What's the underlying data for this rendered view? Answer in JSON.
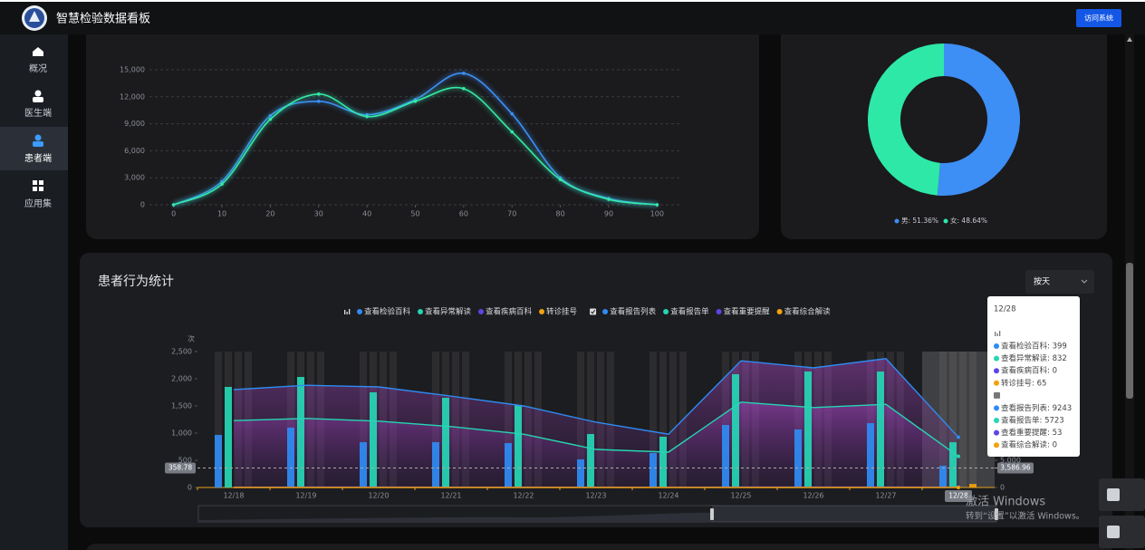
{
  "header": {
    "title": "智慧检验数据看板",
    "button": "访问系统"
  },
  "sidebar": {
    "items": [
      "概况",
      "医生端",
      "患者端",
      "应用集"
    ],
    "active": 2
  },
  "panel_title": "患者行为统计",
  "dropdown": "按天",
  "chart_data": [
    {
      "type": "line",
      "x": [
        0,
        10,
        20,
        30,
        40,
        50,
        60,
        70,
        80,
        90,
        100
      ],
      "xlim": [
        -5,
        105
      ],
      "xticks": [
        0,
        10,
        20,
        30,
        40,
        50,
        60,
        70,
        80,
        90,
        100
      ],
      "ylim": [
        0,
        15000
      ],
      "yticks": [
        0,
        {
          "value": 3000,
          "label": "3,000"
        },
        {
          "value": 6000,
          "label": "6,000"
        },
        {
          "value": 9000,
          "label": "9,000"
        },
        {
          "value": 12000,
          "label": "12,000"
        },
        {
          "value": 15000,
          "label": "15,000"
        }
      ],
      "grid": true,
      "series": [
        {
          "color": "#3c8ff5",
          "values": [
            0,
            2600,
            9900,
            11500,
            10000,
            11700,
            14600,
            10100,
            3000,
            700,
            0
          ]
        },
        {
          "color": "#34eaa6",
          "values": [
            0,
            2300,
            9500,
            12300,
            9800,
            11500,
            12900,
            8100,
            2800,
            600,
            0
          ]
        }
      ]
    },
    {
      "type": "pie",
      "values": [
        51.36,
        48.64
      ],
      "value_labels": [
        "男: 51.36%",
        "女: 48.64%"
      ],
      "colors": [
        "#3d8ef5",
        "#2ee8a8"
      ]
    },
    {
      "type": "combo",
      "categories": [
        "12/18",
        "12/19",
        "12/20",
        "12/21",
        "12/22",
        "12/23",
        "12/24",
        "12/25",
        "12/26",
        "12/27",
        "12/28"
      ],
      "y_label": "次",
      "ylim": [
        0,
        2500
      ],
      "yticks": [
        0,
        500,
        {
          "value": 1000,
          "label": "1,000"
        },
        {
          "value": 1500,
          "label": "1,500"
        },
        {
          "value": 2000,
          "label": "2,000"
        },
        {
          "value": 2500,
          "label": "2,500"
        }
      ],
      "y2lim": [
        0,
        25000
      ],
      "y2ticks": [
        0,
        {
          "value": 5000,
          "label": "5,000"
        }
      ],
      "series": [
        {
          "name": "查看检验百科",
          "type": "bar",
          "color": "#2f8bf3",
          "values": [
            967,
            1100,
            833,
            833,
            817,
            517,
            633,
            1150,
            1067,
            1183,
            399
          ]
        },
        {
          "name": "查看异常解读",
          "type": "bar",
          "color": "#25d6b4",
          "values": [
            1850,
            2033,
            1750,
            1650,
            1517,
            983,
            933,
            2083,
            2133,
            2133,
            832
          ]
        },
        {
          "name": "查看疾病百科",
          "type": "bar",
          "color": "#5b46e6",
          "values": [
            0,
            0,
            0,
            0,
            0,
            0,
            0,
            0,
            0,
            0,
            0
          ]
        },
        {
          "name": "转诊挂号",
          "type": "bar",
          "color": "#f2a20c",
          "values": [
            0,
            0,
            0,
            0,
            0,
            0,
            0,
            0,
            0,
            0,
            65
          ]
        },
        {
          "name": "查看报告列表",
          "type": "line",
          "axis": "y2",
          "color": "#2f8bf3",
          "values": [
            18000,
            18800,
            18500,
            16800,
            15000,
            12000,
            9800,
            23300,
            22000,
            23700,
            9243
          ]
        },
        {
          "name": "查看报告单",
          "type": "line",
          "axis": "y2",
          "color": "#25d6b4",
          "values": [
            12300,
            12700,
            12200,
            11200,
            9800,
            7000,
            6500,
            15700,
            14700,
            15300,
            5723
          ]
        },
        {
          "name": "查看重要提醒",
          "type": "line",
          "axis": "y2",
          "color": "#5b46e6",
          "values": [
            60,
            70,
            65,
            58,
            55,
            40,
            38,
            72,
            66,
            70,
            53
          ]
        },
        {
          "name": "查看综合解读",
          "type": "line",
          "axis": "y2",
          "color": "#f2a20c",
          "values": [
            0,
            0,
            0,
            0,
            0,
            0,
            0,
            0,
            0,
            0,
            0
          ]
        }
      ],
      "pointer": {
        "x": "12/28",
        "y": {
          "value": 358.78,
          "label": "358.78"
        },
        "y2": {
          "value": 3586.96,
          "label": "3,586.96"
        }
      }
    }
  ],
  "tooltip": {
    "title": "12/28",
    "bar_items": [
      "查看检验百科: 399",
      "查看异常解读: 832",
      "查看疾病百科: 0",
      "转诊挂号: 65"
    ],
    "line_items": [
      "查看报告列表: 9243",
      "查看报告单: 5723",
      "查看重要提醒: 53",
      "查看综合解读: 0"
    ]
  },
  "watermark": [
    "激活 Windows",
    "转到“设置”以激活 Windows。"
  ]
}
